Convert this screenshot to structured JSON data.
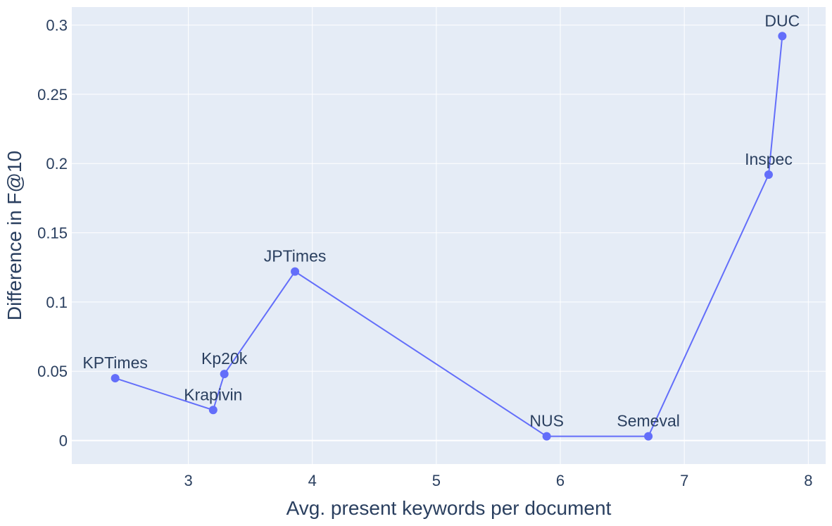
{
  "chart_data": {
    "type": "line",
    "title": "",
    "xlabel": "Avg. present keywords per document",
    "ylabel": "Difference in F@10",
    "xlim": [
      2.06,
      8.14
    ],
    "ylim": [
      -0.017,
      0.313
    ],
    "xticks": [
      3,
      4,
      5,
      6,
      7,
      8
    ],
    "xtick_labels": [
      "3",
      "4",
      "5",
      "6",
      "7",
      "8"
    ],
    "yticks": [
      0,
      0.05,
      0.1,
      0.15,
      0.2,
      0.25,
      0.3
    ],
    "ytick_labels": [
      "0",
      "0.05",
      "0.1",
      "0.15",
      "0.2",
      "0.25",
      "0.3"
    ],
    "grid": true,
    "legend": "none",
    "colors": {
      "plot_bg": "#e5ecf6",
      "grid": "#ffffff",
      "line": "#636efa",
      "text": "#2a3f5f"
    },
    "series": [
      {
        "mode": "lines+markers+text",
        "points": [
          {
            "label": "KPTimes",
            "x": 2.41,
            "y": 0.045
          },
          {
            "label": "Krapivin",
            "x": 3.2,
            "y": 0.022
          },
          {
            "label": "Kp20k",
            "x": 3.29,
            "y": 0.048
          },
          {
            "label": "JPTimes",
            "x": 3.86,
            "y": 0.122
          },
          {
            "label": "NUS",
            "x": 5.89,
            "y": 0.003
          },
          {
            "label": "Semeval",
            "x": 6.71,
            "y": 0.003
          },
          {
            "label": "Inspec",
            "x": 7.68,
            "y": 0.192
          },
          {
            "label": "DUC",
            "x": 7.79,
            "y": 0.292
          }
        ]
      }
    ]
  }
}
